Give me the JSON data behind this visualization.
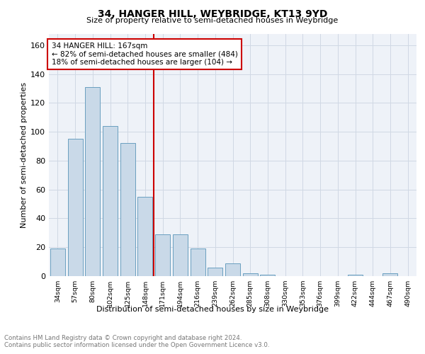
{
  "title": "34, HANGER HILL, WEYBRIDGE, KT13 9YD",
  "subtitle": "Size of property relative to semi-detached houses in Weybridge",
  "xlabel": "Distribution of semi-detached houses by size in Weybridge",
  "ylabel": "Number of semi-detached properties",
  "bar_color": "#c9d9e8",
  "bar_edge_color": "#6a9fc0",
  "categories": [
    "34sqm",
    "57sqm",
    "80sqm",
    "102sqm",
    "125sqm",
    "148sqm",
    "171sqm",
    "194sqm",
    "216sqm",
    "239sqm",
    "262sqm",
    "285sqm",
    "308sqm",
    "330sqm",
    "353sqm",
    "376sqm",
    "399sqm",
    "422sqm",
    "444sqm",
    "467sqm",
    "490sqm"
  ],
  "values": [
    19,
    95,
    131,
    104,
    92,
    55,
    29,
    29,
    19,
    6,
    9,
    2,
    1,
    0,
    0,
    0,
    0,
    1,
    0,
    2,
    0
  ],
  "vline_x": 6.0,
  "vline_color": "#cc0000",
  "annotation_text": "34 HANGER HILL: 167sqm\n← 82% of semi-detached houses are smaller (484)\n18% of semi-detached houses are larger (104) →",
  "annotation_box_color": "#ffffff",
  "annotation_box_edge": "#cc0000",
  "ylim": [
    0,
    168
  ],
  "yticks": [
    0,
    20,
    40,
    60,
    80,
    100,
    120,
    140,
    160
  ],
  "footnote": "Contains HM Land Registry data © Crown copyright and database right 2024.\nContains public sector information licensed under the Open Government Licence v3.0.",
  "grid_color": "#d0d8e4",
  "background_color": "#eef2f8"
}
